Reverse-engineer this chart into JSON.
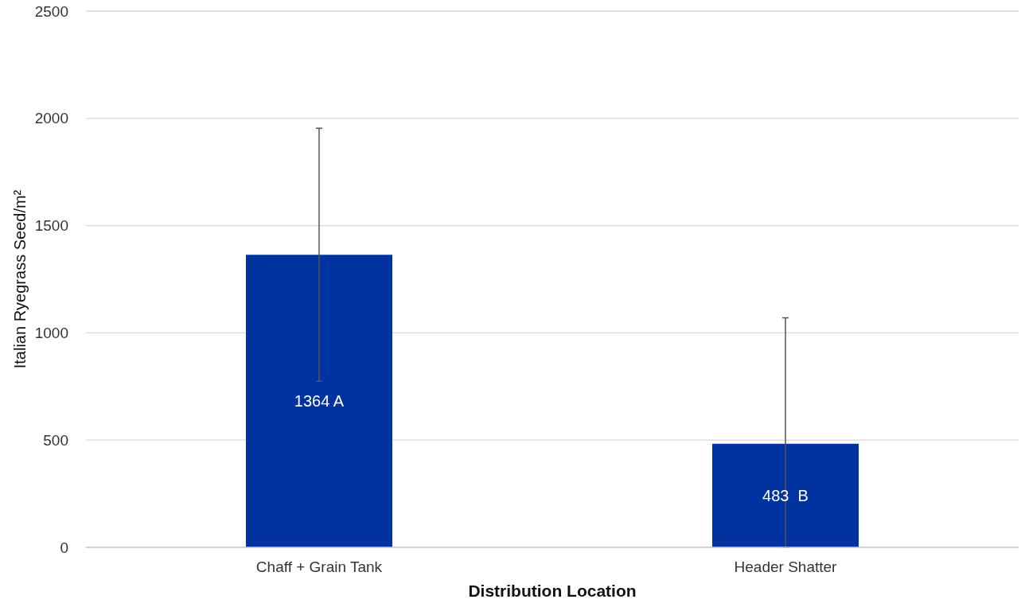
{
  "chart_data": {
    "type": "bar",
    "xlabel": "Distribution Location",
    "ylabel": "Italian Ryegrass Seed/m²",
    "categories": [
      "Chaff + Grain Tank",
      "Header Shatter"
    ],
    "values": [
      1364,
      483
    ],
    "color": "#0033a0",
    "errors": [
      [
        774,
        1954
      ],
      [
        0,
        1070
      ]
    ],
    "value_labels": [
      "1364 A",
      "483  B"
    ],
    "ylim": [
      0,
      2500
    ],
    "yticks": [
      0,
      500,
      1000,
      1500,
      2000,
      2500
    ],
    "grid": "y"
  }
}
